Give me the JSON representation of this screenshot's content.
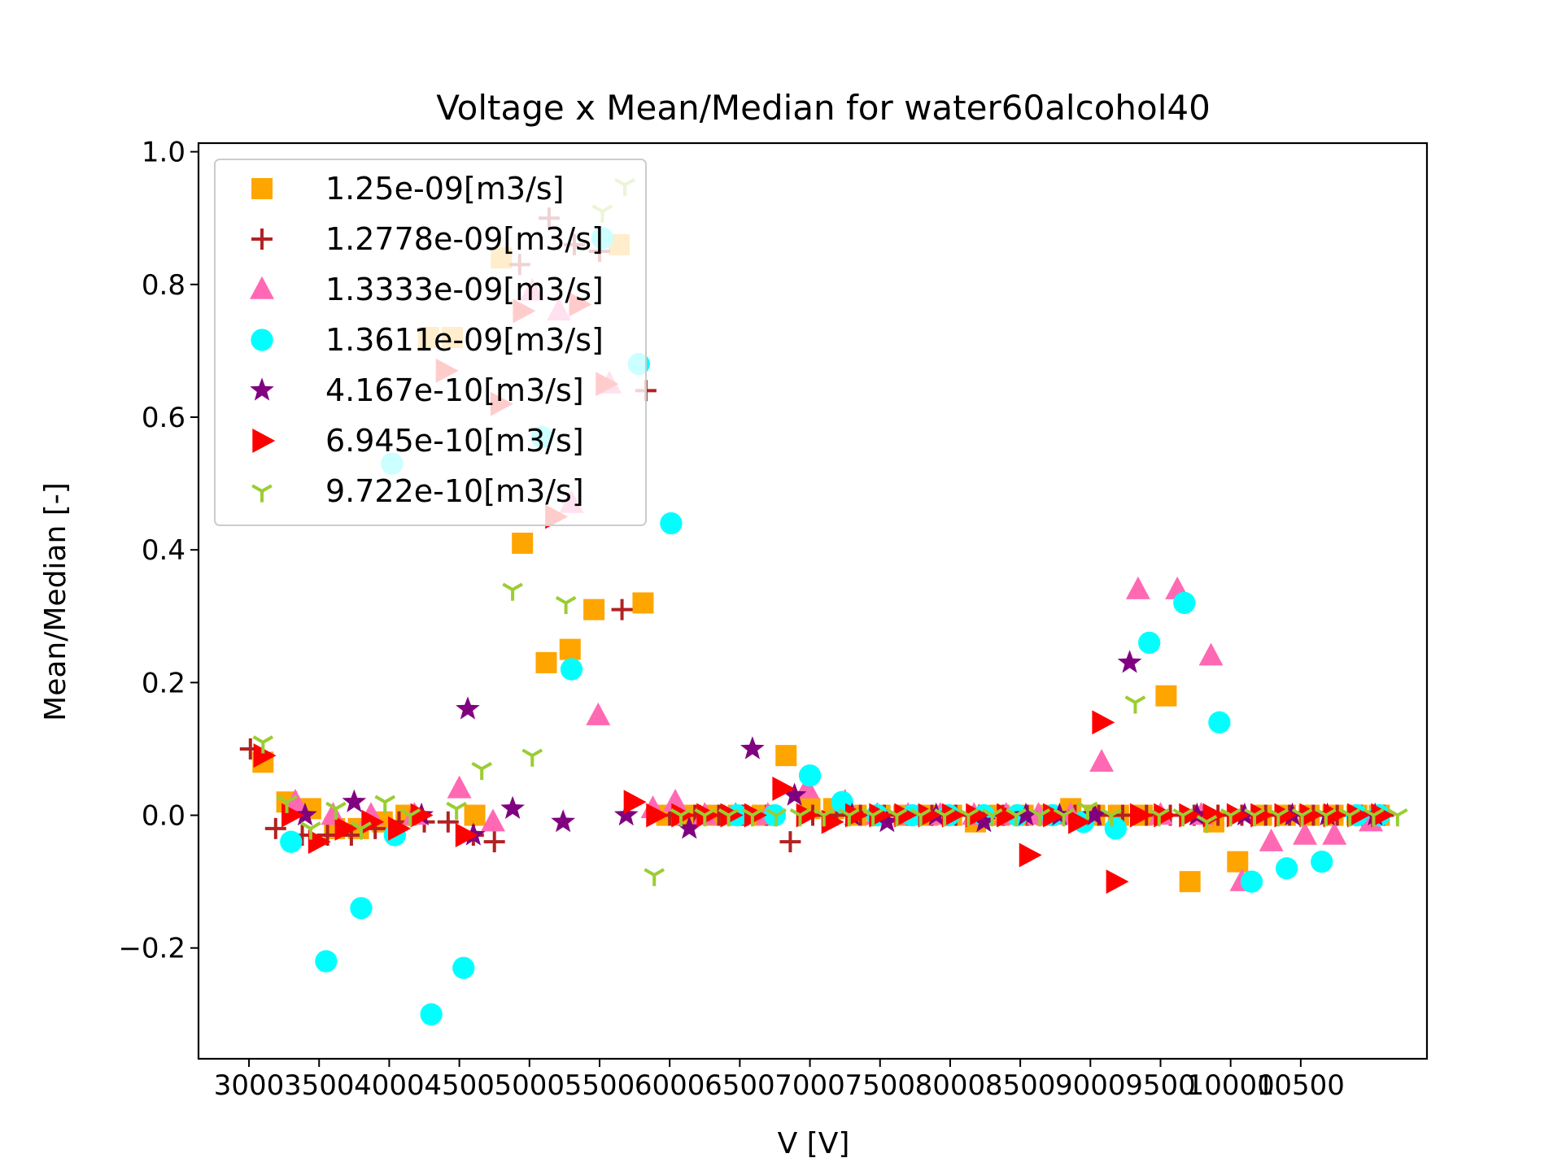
{
  "chart_data": {
    "type": "scatter",
    "title": "Voltage x Mean/Median for water60alcohol40",
    "xlabel": "V [V]",
    "ylabel": "Mean/Median [-]",
    "xlim": [
      2640,
      11400
    ],
    "ylim": [
      -0.367,
      1.013
    ],
    "xticks": [
      3000,
      3500,
      4000,
      4500,
      5000,
      5500,
      6000,
      6500,
      7000,
      7500,
      8000,
      8500,
      9000,
      9500,
      10000,
      10500
    ],
    "xtick_labels": [
      "3000",
      "3500",
      "4000",
      "4500",
      "5000",
      "5500",
      "6000",
      "6500",
      "7000",
      "7500",
      "8000",
      "8500",
      "9000",
      "9500",
      "10000",
      "10500"
    ],
    "yticks": [
      -0.2,
      0.0,
      0.2,
      0.4,
      0.6,
      0.8,
      1.0
    ],
    "ytick_labels": [
      "−0.2",
      "0.0",
      "0.2",
      "0.4",
      "0.6",
      "0.8",
      "1.0"
    ],
    "grid": false,
    "legend_position": "upper-left",
    "series": [
      {
        "name": "1.25e-09[m3/s]",
        "marker": "square",
        "color": "#ffa500",
        "points": [
          [
            3100,
            0.08
          ],
          [
            3270,
            0.02
          ],
          [
            3440,
            0.01
          ],
          [
            3610,
            -0.02
          ],
          [
            3780,
            -0.02
          ],
          [
            3950,
            -0.01
          ],
          [
            4120,
            0.0
          ],
          [
            4280,
            0.72
          ],
          [
            4450,
            0.72
          ],
          [
            4610,
            0.0
          ],
          [
            4800,
            0.84
          ],
          [
            4950,
            0.41
          ],
          [
            5120,
            0.23
          ],
          [
            5290,
            0.25
          ],
          [
            5460,
            0.31
          ],
          [
            5640,
            0.86
          ],
          [
            5810,
            0.32
          ],
          [
            5980,
            0.0
          ],
          [
            6150,
            0.0
          ],
          [
            6320,
            0.0
          ],
          [
            6490,
            0.0
          ],
          [
            6660,
            0.0
          ],
          [
            6830,
            0.09
          ],
          [
            7000,
            0.01
          ],
          [
            7170,
            0.01
          ],
          [
            7330,
            0.0
          ],
          [
            7500,
            0.0
          ],
          [
            7670,
            0.0
          ],
          [
            7840,
            0.0
          ],
          [
            8010,
            0.0
          ],
          [
            8180,
            -0.01
          ],
          [
            8350,
            0.0
          ],
          [
            8520,
            0.0
          ],
          [
            8690,
            0.0
          ],
          [
            8860,
            0.01
          ],
          [
            9030,
            0.0
          ],
          [
            9200,
            0.0
          ],
          [
            9370,
            0.0
          ],
          [
            9540,
            0.18
          ],
          [
            9710,
            -0.1
          ],
          [
            9880,
            -0.01
          ],
          [
            10050,
            -0.07
          ],
          [
            10220,
            0.0
          ],
          [
            10390,
            0.0
          ],
          [
            10560,
            0.0
          ],
          [
            10730,
            0.0
          ],
          [
            10900,
            0.0
          ],
          [
            11060,
            0.0
          ]
        ]
      },
      {
        "name": "1.2778e-09[m3/s]",
        "marker": "plus",
        "color": "#b22222",
        "points": [
          [
            3010,
            0.1
          ],
          [
            3190,
            -0.02
          ],
          [
            3380,
            -0.03
          ],
          [
            3560,
            -0.03
          ],
          [
            3730,
            -0.03
          ],
          [
            3900,
            -0.02
          ],
          [
            4070,
            -0.01
          ],
          [
            4250,
            -0.01
          ],
          [
            4420,
            -0.01
          ],
          [
            4600,
            -0.03
          ],
          [
            4750,
            -0.04
          ],
          [
            4930,
            0.83
          ],
          [
            5140,
            0.9
          ],
          [
            5320,
            0.86
          ],
          [
            5500,
            0.85
          ],
          [
            5660,
            0.31
          ],
          [
            5830,
            0.64
          ],
          [
            6000,
            0.0
          ],
          [
            6180,
            0.0
          ],
          [
            6350,
            0.0
          ],
          [
            6520,
            0.0
          ],
          [
            6690,
            0.0
          ],
          [
            6860,
            -0.04
          ],
          [
            7020,
            0.0
          ],
          [
            7190,
            0.0
          ],
          [
            7360,
            0.0
          ],
          [
            7530,
            0.0
          ],
          [
            7700,
            0.0
          ],
          [
            7870,
            0.0
          ],
          [
            8040,
            0.0
          ],
          [
            8210,
            0.0
          ],
          [
            8380,
            0.0
          ],
          [
            8550,
            0.0
          ],
          [
            8720,
            0.0
          ],
          [
            8890,
            0.0
          ],
          [
            9060,
            0.0
          ],
          [
            9230,
            0.0
          ],
          [
            9400,
            0.0
          ],
          [
            9570,
            0.0
          ],
          [
            9740,
            0.0
          ],
          [
            9910,
            0.0
          ],
          [
            10080,
            0.0
          ],
          [
            10250,
            0.0
          ],
          [
            10420,
            0.0
          ],
          [
            10590,
            0.0
          ],
          [
            10760,
            0.0
          ],
          [
            10930,
            0.0
          ],
          [
            11090,
            0.0
          ]
        ]
      },
      {
        "name": "1.3333e-09[m3/s]",
        "marker": "triangle-up",
        "color": "#ff69b4",
        "points": [
          [
            3330,
            0.02
          ],
          [
            3600,
            0.0
          ],
          [
            3870,
            0.0
          ],
          [
            4180,
            0.0
          ],
          [
            4500,
            0.04
          ],
          [
            4740,
            -0.01
          ],
          [
            5020,
            0.79
          ],
          [
            5210,
            0.76
          ],
          [
            5300,
            0.47
          ],
          [
            5490,
            0.15
          ],
          [
            5570,
            0.65
          ],
          [
            5880,
            0.01
          ],
          [
            6040,
            0.02
          ],
          [
            6250,
            0.0
          ],
          [
            6470,
            0.0
          ],
          [
            6700,
            0.0
          ],
          [
            6980,
            0.04
          ],
          [
            7250,
            0.02
          ],
          [
            7480,
            0.0
          ],
          [
            7700,
            0.0
          ],
          [
            7930,
            0.0
          ],
          [
            8170,
            0.0
          ],
          [
            8400,
            0.0
          ],
          [
            8630,
            0.0
          ],
          [
            8860,
            0.0
          ],
          [
            9080,
            0.08
          ],
          [
            9340,
            0.34
          ],
          [
            9500,
            0.0
          ],
          [
            9620,
            0.34
          ],
          [
            9790,
            0.0
          ],
          [
            9860,
            0.24
          ],
          [
            10080,
            -0.1
          ],
          [
            10290,
            -0.04
          ],
          [
            10530,
            -0.03
          ],
          [
            10740,
            -0.03
          ],
          [
            11000,
            -0.01
          ]
        ]
      },
      {
        "name": "1.3611e-09[m3/s]",
        "marker": "circle",
        "color": "#00ffff",
        "points": [
          [
            3300,
            -0.04
          ],
          [
            3550,
            -0.22
          ],
          [
            3800,
            -0.14
          ],
          [
            4040,
            -0.03
          ],
          [
            4020,
            0.53
          ],
          [
            4300,
            -0.3
          ],
          [
            4530,
            -0.23
          ],
          [
            5090,
            0.57
          ],
          [
            5300,
            0.22
          ],
          [
            5520,
            0.87
          ],
          [
            5780,
            0.68
          ],
          [
            6010,
            0.44
          ],
          [
            6480,
            0.0
          ],
          [
            6750,
            0.0
          ],
          [
            7000,
            0.06
          ],
          [
            7230,
            0.02
          ],
          [
            7480,
            0.0
          ],
          [
            7730,
            0.0
          ],
          [
            7990,
            0.0
          ],
          [
            8240,
            0.0
          ],
          [
            8480,
            0.0
          ],
          [
            8730,
            0.0
          ],
          [
            8950,
            -0.01
          ],
          [
            9180,
            -0.02
          ],
          [
            9420,
            0.26
          ],
          [
            9670,
            0.32
          ],
          [
            9920,
            0.14
          ],
          [
            10150,
            -0.1
          ],
          [
            10400,
            -0.08
          ],
          [
            10650,
            -0.07
          ],
          [
            10900,
            0.0
          ],
          [
            11060,
            0.0
          ]
        ]
      },
      {
        "name": "4.167e-10[m3/s]",
        "marker": "star",
        "color": "#800080",
        "points": [
          [
            3400,
            0.0
          ],
          [
            3750,
            0.02
          ],
          [
            4230,
            0.0
          ],
          [
            4560,
            0.16
          ],
          [
            4600,
            -0.03
          ],
          [
            4880,
            0.01
          ],
          [
            5240,
            -0.01
          ],
          [
            5690,
            0.0
          ],
          [
            6140,
            -0.02
          ],
          [
            6590,
            0.1
          ],
          [
            6890,
            0.03
          ],
          [
            7300,
            0.0
          ],
          [
            7550,
            -0.01
          ],
          [
            7900,
            0.0
          ],
          [
            8240,
            -0.01
          ],
          [
            8540,
            0.0
          ],
          [
            8780,
            0.0
          ],
          [
            9030,
            0.0
          ],
          [
            9280,
            0.23
          ],
          [
            9760,
            0.0
          ],
          [
            10100,
            0.0
          ],
          [
            10440,
            0.0
          ],
          [
            10690,
            0.0
          ],
          [
            11030,
            0.0
          ]
        ]
      },
      {
        "name": "6.945e-10[m3/s]",
        "marker": "triangle-right",
        "color": "#ff0000",
        "points": [
          [
            3100,
            0.09
          ],
          [
            3300,
            0.0
          ],
          [
            3490,
            -0.04
          ],
          [
            3680,
            -0.02
          ],
          [
            3870,
            -0.01
          ],
          [
            4060,
            -0.02
          ],
          [
            4220,
            0.0
          ],
          [
            4400,
            0.67
          ],
          [
            4540,
            -0.03
          ],
          [
            4790,
            0.62
          ],
          [
            4950,
            0.76
          ],
          [
            5180,
            0.45
          ],
          [
            5350,
            0.77
          ],
          [
            5540,
            0.65
          ],
          [
            5740,
            0.02
          ],
          [
            5900,
            0.0
          ],
          [
            6080,
            0.0
          ],
          [
            6260,
            0.0
          ],
          [
            6430,
            0.0
          ],
          [
            6600,
            0.0
          ],
          [
            6800,
            0.04
          ],
          [
            6970,
            0.0
          ],
          [
            7150,
            -0.01
          ],
          [
            7320,
            0.0
          ],
          [
            7490,
            0.0
          ],
          [
            7670,
            0.0
          ],
          [
            7840,
            0.0
          ],
          [
            8010,
            0.0
          ],
          [
            8180,
            0.0
          ],
          [
            8400,
            0.0
          ],
          [
            8560,
            -0.06
          ],
          [
            8730,
            0.0
          ],
          [
            8910,
            -0.01
          ],
          [
            9080,
            0.14
          ],
          [
            9180,
            -0.1
          ],
          [
            9350,
            0.0
          ],
          [
            9520,
            0.0
          ],
          [
            9700,
            0.0
          ],
          [
            9870,
            0.0
          ],
          [
            10040,
            0.0
          ],
          [
            10210,
            0.0
          ],
          [
            10380,
            0.0
          ],
          [
            10560,
            0.0
          ],
          [
            10730,
            0.0
          ],
          [
            10900,
            0.0
          ],
          [
            11070,
            0.0
          ]
        ]
      },
      {
        "name": "9.722e-10[m3/s]",
        "marker": "tri-down",
        "color": "#9acd32",
        "points": [
          [
            3100,
            0.11
          ],
          [
            3270,
            0.02
          ],
          [
            3440,
            -0.02
          ],
          [
            3620,
            0.01
          ],
          [
            3800,
            -0.02
          ],
          [
            3970,
            0.02
          ],
          [
            4150,
            0.0
          ],
          [
            4480,
            0.01
          ],
          [
            4660,
            0.07
          ],
          [
            4880,
            0.34
          ],
          [
            5020,
            0.09
          ],
          [
            5260,
            0.32
          ],
          [
            5520,
            0.91
          ],
          [
            5680,
            0.95
          ],
          [
            5890,
            -0.09
          ],
          [
            6080,
            0.0
          ],
          [
            6250,
            0.0
          ],
          [
            6420,
            0.0
          ],
          [
            6590,
            0.0
          ],
          [
            6760,
            0.0
          ],
          [
            6930,
            0.0
          ],
          [
            7100,
            0.0
          ],
          [
            7280,
            0.0
          ],
          [
            7450,
            0.0
          ],
          [
            7620,
            0.0
          ],
          [
            7790,
            0.0
          ],
          [
            7960,
            0.0
          ],
          [
            8130,
            0.0
          ],
          [
            8300,
            0.0
          ],
          [
            8470,
            0.0
          ],
          [
            8640,
            0.0
          ],
          [
            8810,
            0.0
          ],
          [
            8980,
            0.01
          ],
          [
            9150,
            0.0
          ],
          [
            9320,
            0.17
          ],
          [
            9490,
            0.0
          ],
          [
            9660,
            0.0
          ],
          [
            9830,
            -0.01
          ],
          [
            10000,
            0.0
          ],
          [
            10170,
            0.0
          ],
          [
            10340,
            0.0
          ],
          [
            10510,
            0.0
          ],
          [
            10680,
            0.0
          ],
          [
            10850,
            0.0
          ],
          [
            11020,
            0.0
          ],
          [
            11190,
            0.0
          ]
        ]
      }
    ]
  }
}
